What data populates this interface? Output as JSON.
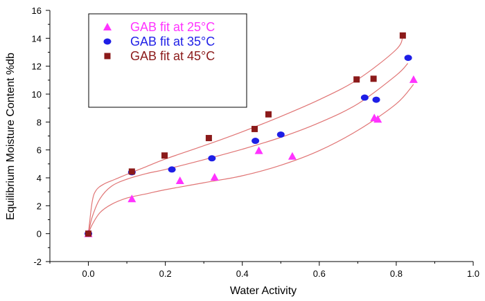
{
  "chart_data": {
    "type": "scatter",
    "xlabel": "Water Activity",
    "ylabel": "Equilibrium Moisture Content %db",
    "xlim": [
      -0.1,
      1.0
    ],
    "ylim": [
      -2,
      16
    ],
    "x_ticks": [
      0.0,
      0.2,
      0.4,
      0.6,
      0.8,
      1.0
    ],
    "x_tick_labels": [
      "0.0",
      "0.2",
      "0.4",
      "0.6",
      "0.8",
      "1.0"
    ],
    "y_ticks": [
      -2,
      0,
      2,
      4,
      6,
      8,
      10,
      12,
      14,
      16
    ],
    "y_tick_labels": [
      "-2",
      "0",
      "2",
      "4",
      "6",
      "8",
      "10",
      "12",
      "14",
      "16"
    ],
    "grid": false,
    "legend_position": "top-left",
    "series": [
      {
        "name": "GAB fit at 25°C",
        "marker": "triangle",
        "color": "#ff33ff",
        "points": [
          [
            0.0,
            0.0
          ],
          [
            0.113,
            2.5
          ],
          [
            0.238,
            3.8
          ],
          [
            0.328,
            4.05
          ],
          [
            0.443,
            5.95
          ],
          [
            0.53,
            5.55
          ],
          [
            0.743,
            8.3
          ],
          [
            0.752,
            8.2
          ],
          [
            0.845,
            11.05
          ]
        ]
      },
      {
        "name": "GAB fit at 35°C",
        "marker": "circle",
        "color": "#1e1ee6",
        "points": [
          [
            0.0,
            0.0
          ],
          [
            0.113,
            4.4
          ],
          [
            0.217,
            4.6
          ],
          [
            0.321,
            5.4
          ],
          [
            0.434,
            6.65
          ],
          [
            0.5,
            7.1
          ],
          [
            0.718,
            9.75
          ],
          [
            0.748,
            9.6
          ],
          [
            0.831,
            12.6
          ]
        ]
      },
      {
        "name": "GAB fit at 45°C",
        "marker": "square",
        "color": "#8b1a1a",
        "points": [
          [
            0.0,
            0.0
          ],
          [
            0.113,
            4.45
          ],
          [
            0.198,
            5.6
          ],
          [
            0.313,
            6.85
          ],
          [
            0.432,
            7.5
          ],
          [
            0.468,
            8.55
          ],
          [
            0.697,
            11.05
          ],
          [
            0.741,
            11.1
          ],
          [
            0.817,
            14.2
          ]
        ]
      }
    ],
    "fit_curves": [
      {
        "series": "GAB fit at 25°C",
        "color": "#e07474",
        "points": [
          [
            0.0,
            0.0
          ],
          [
            0.01,
            0.65
          ],
          [
            0.03,
            1.5
          ],
          [
            0.06,
            2.1
          ],
          [
            0.1,
            2.55
          ],
          [
            0.15,
            2.85
          ],
          [
            0.2,
            3.15
          ],
          [
            0.3,
            3.65
          ],
          [
            0.4,
            4.15
          ],
          [
            0.5,
            4.9
          ],
          [
            0.6,
            5.95
          ],
          [
            0.7,
            7.4
          ],
          [
            0.8,
            9.3
          ],
          [
            0.845,
            10.7
          ]
        ]
      },
      {
        "series": "GAB fit at 35°C",
        "color": "#e07474",
        "points": [
          [
            0.0,
            0.0
          ],
          [
            0.01,
            1.2
          ],
          [
            0.03,
            2.5
          ],
          [
            0.06,
            3.4
          ],
          [
            0.1,
            3.9
          ],
          [
            0.15,
            4.3
          ],
          [
            0.2,
            4.6
          ],
          [
            0.3,
            5.3
          ],
          [
            0.4,
            6.05
          ],
          [
            0.5,
            6.9
          ],
          [
            0.6,
            7.95
          ],
          [
            0.7,
            9.3
          ],
          [
            0.8,
            11.35
          ],
          [
            0.83,
            12.2
          ]
        ]
      },
      {
        "series": "GAB fit at 45°C",
        "color": "#e07474",
        "points": [
          [
            0.0,
            0.0
          ],
          [
            0.01,
            2.3
          ],
          [
            0.02,
            3.1
          ],
          [
            0.04,
            3.55
          ],
          [
            0.07,
            3.9
          ],
          [
            0.1,
            4.25
          ],
          [
            0.15,
            4.8
          ],
          [
            0.2,
            5.35
          ],
          [
            0.3,
            6.3
          ],
          [
            0.4,
            7.3
          ],
          [
            0.5,
            8.4
          ],
          [
            0.6,
            9.6
          ],
          [
            0.7,
            11.05
          ],
          [
            0.8,
            13.2
          ],
          [
            0.817,
            14.2
          ]
        ]
      }
    ]
  }
}
